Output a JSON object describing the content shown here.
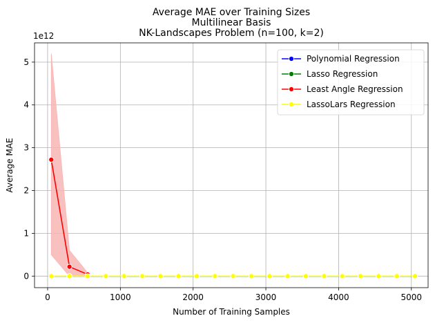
{
  "chart_data": {
    "type": "line",
    "title_lines": [
      "Average MAE over Training Sizes",
      "Multilinear Basis",
      "NK-Landscapes Problem (n=100, k=2)"
    ],
    "xlabel": "Number of Training Samples",
    "ylabel": "Average MAE",
    "y_offset_label": "1e12",
    "xlim": [
      -180,
      5230
    ],
    "ylim": [
      -0.27,
      5.45
    ],
    "x_ticks": [
      0,
      1000,
      2000,
      3000,
      4000,
      5000
    ],
    "y_ticks": [
      0,
      1,
      2,
      3,
      4,
      5
    ],
    "grid": true,
    "legend_position": "upper-right",
    "series": [
      {
        "name": "Polynomial Regression",
        "color": "#0000ff",
        "x": [
          50,
          300,
          550,
          800,
          1050,
          1300,
          1550,
          1800,
          2050,
          2300,
          2550,
          2800,
          3050,
          3300,
          3550,
          3800,
          4050,
          4300,
          4550,
          4800,
          5050
        ],
        "y": [
          0,
          0,
          0,
          0,
          0,
          0,
          0,
          0,
          0,
          0,
          0,
          0,
          0,
          0,
          0,
          0,
          0,
          0,
          0,
          0,
          0
        ]
      },
      {
        "name": "Lasso Regression",
        "color": "#008000",
        "x": [
          50,
          300,
          550,
          800,
          1050,
          1300,
          1550,
          1800,
          2050,
          2300,
          2550,
          2800,
          3050,
          3300,
          3550,
          3800,
          4050,
          4300,
          4550,
          4800,
          5050
        ],
        "y": [
          0,
          0,
          0,
          0,
          0,
          0,
          0,
          0,
          0,
          0,
          0,
          0,
          0,
          0,
          0,
          0,
          0,
          0,
          0,
          0,
          0
        ]
      },
      {
        "name": "Least Angle Regression",
        "color": "#ff0000",
        "x": [
          50,
          300,
          550
        ],
        "y": [
          2.72,
          0.22,
          0.04
        ],
        "band_low": [
          0.5,
          0.0,
          0.0
        ],
        "band_high": [
          5.2,
          0.6,
          0.08
        ],
        "band_color": "#f8b5b5"
      },
      {
        "name": "LassoLars Regression",
        "color": "#ffff00",
        "x": [
          50,
          300,
          550,
          800,
          1050,
          1300,
          1550,
          1800,
          2050,
          2300,
          2550,
          2800,
          3050,
          3300,
          3550,
          3800,
          4050,
          4300,
          4550,
          4800,
          5050
        ],
        "y": [
          0,
          0,
          0,
          0,
          0,
          0,
          0,
          0,
          0,
          0,
          0,
          0,
          0,
          0,
          0,
          0,
          0,
          0,
          0,
          0,
          0
        ]
      }
    ]
  }
}
